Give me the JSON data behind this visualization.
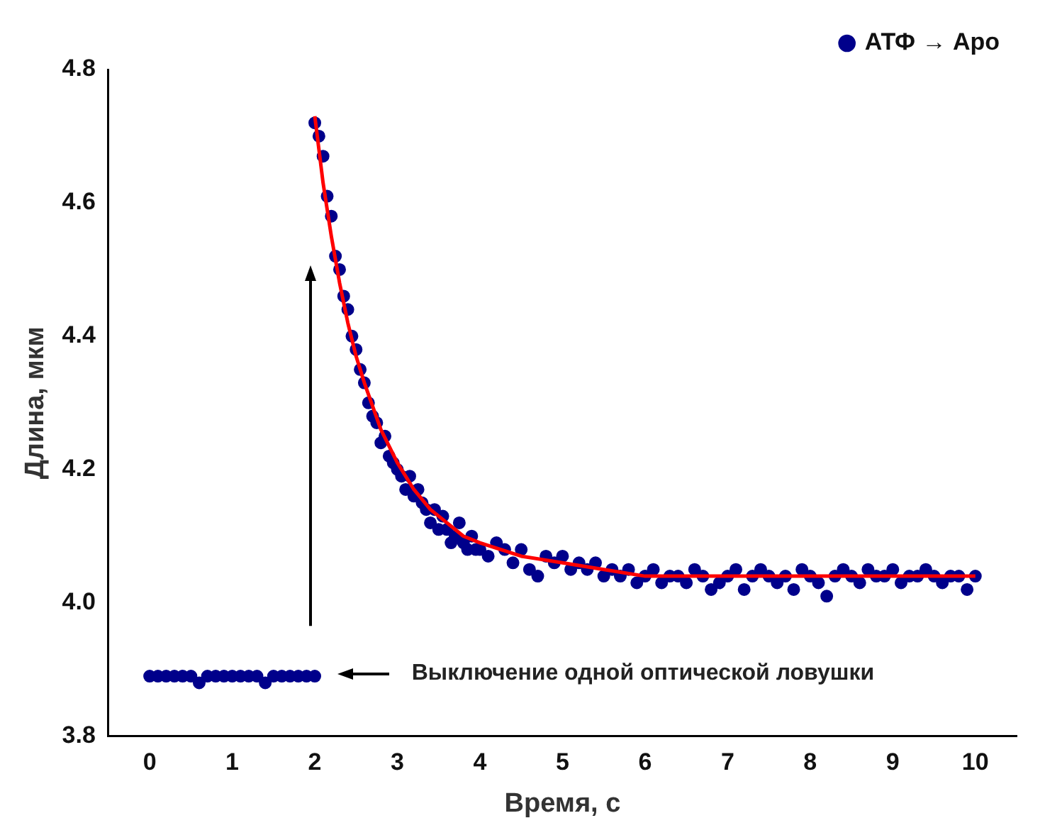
{
  "chart_data": {
    "type": "scatter",
    "xlabel": "Время, с",
    "ylabel": "Длина, мкм",
    "xlim": [
      -0.5,
      10.5
    ],
    "xticks": [
      0,
      1,
      2,
      3,
      4,
      5,
      6,
      7,
      8,
      9,
      10
    ],
    "ylim": [
      3.8,
      4.8
    ],
    "yticks": [
      3.8,
      {
        "value": 4,
        "label": "4.0"
      },
      4.2,
      4.4,
      4.6,
      4.8
    ],
    "grid": false,
    "legend": "top right",
    "annotations": [
      "Выключение одной оптической ловушки"
    ],
    "series": [
      {
        "name": "АТФ → Apo",
        "color": "#00008b",
        "marker": "circle",
        "x": [
          0.0,
          0.1,
          0.2,
          0.3,
          0.4,
          0.5,
          0.6,
          0.7,
          0.8,
          0.9,
          1.0,
          1.1,
          1.2,
          1.3,
          1.4,
          1.5,
          1.6,
          1.7,
          1.8,
          1.9,
          2.0,
          2.0,
          2.05,
          2.1,
          2.15,
          2.2,
          2.25,
          2.3,
          2.35,
          2.4,
          2.45,
          2.5,
          2.55,
          2.6,
          2.65,
          2.7,
          2.75,
          2.8,
          2.85,
          2.9,
          2.95,
          3.0,
          3.05,
          3.1,
          3.15,
          3.2,
          3.25,
          3.3,
          3.35,
          3.4,
          3.45,
          3.5,
          3.55,
          3.6,
          3.65,
          3.7,
          3.75,
          3.8,
          3.85,
          3.9,
          3.95,
          4.0,
          4.1,
          4.2,
          4.3,
          4.4,
          4.5,
          4.6,
          4.7,
          4.8,
          4.9,
          5.0,
          5.1,
          5.2,
          5.3,
          5.4,
          5.5,
          5.6,
          5.7,
          5.8,
          5.9,
          6.0,
          6.1,
          6.2,
          6.3,
          6.4,
          6.5,
          6.6,
          6.7,
          6.8,
          6.9,
          7.0,
          7.1,
          7.2,
          7.3,
          7.4,
          7.5,
          7.6,
          7.7,
          7.8,
          7.9,
          8.0,
          8.1,
          8.2,
          8.3,
          8.4,
          8.5,
          8.6,
          8.7,
          8.8,
          8.9,
          9.0,
          9.1,
          9.2,
          9.3,
          9.4,
          9.5,
          9.6,
          9.7,
          9.8,
          9.9,
          10.0
        ],
        "values": [
          3.89,
          3.89,
          3.89,
          3.89,
          3.89,
          3.89,
          3.88,
          3.89,
          3.89,
          3.89,
          3.89,
          3.89,
          3.89,
          3.89,
          3.88,
          3.89,
          3.89,
          3.89,
          3.89,
          3.89,
          3.89,
          4.72,
          4.7,
          4.67,
          4.61,
          4.58,
          4.52,
          4.5,
          4.46,
          4.44,
          4.4,
          4.38,
          4.35,
          4.33,
          4.3,
          4.28,
          4.27,
          4.24,
          4.25,
          4.22,
          4.21,
          4.2,
          4.19,
          4.17,
          4.19,
          4.16,
          4.17,
          4.15,
          4.14,
          4.12,
          4.14,
          4.11,
          4.13,
          4.11,
          4.09,
          4.1,
          4.12,
          4.09,
          4.08,
          4.1,
          4.08,
          4.08,
          4.07,
          4.09,
          4.08,
          4.06,
          4.08,
          4.05,
          4.04,
          4.07,
          4.06,
          4.07,
          4.05,
          4.06,
          4.05,
          4.06,
          4.04,
          4.05,
          4.04,
          4.05,
          4.03,
          4.04,
          4.05,
          4.03,
          4.04,
          4.04,
          4.03,
          4.05,
          4.04,
          4.02,
          4.03,
          4.04,
          4.05,
          4.02,
          4.04,
          4.05,
          4.04,
          4.03,
          4.04,
          4.02,
          4.05,
          4.04,
          4.03,
          4.01,
          4.04,
          4.05,
          4.04,
          4.03,
          4.05,
          4.04,
          4.04,
          4.05,
          4.03,
          4.04,
          4.04,
          4.05,
          4.04,
          4.03,
          4.04,
          4.04,
          4.02,
          4.04
        ]
      },
      {
        "type": "line",
        "color": "#ff0000",
        "line_style": "solid",
        "x": [
          2.0,
          2.1,
          2.2,
          2.3,
          2.4,
          2.5,
          2.6,
          2.8,
          3.0,
          3.2,
          3.4,
          3.6,
          3.8,
          4.0,
          4.5,
          5.0,
          5.5,
          6.0,
          7.0,
          8.0,
          9.0,
          10.0
        ],
        "values": [
          4.73,
          4.63,
          4.55,
          4.48,
          4.42,
          4.37,
          4.33,
          4.26,
          4.21,
          4.17,
          4.14,
          4.12,
          4.1,
          4.09,
          4.07,
          4.06,
          4.05,
          4.04,
          4.04,
          4.04,
          4.04,
          4.04
        ]
      }
    ]
  }
}
